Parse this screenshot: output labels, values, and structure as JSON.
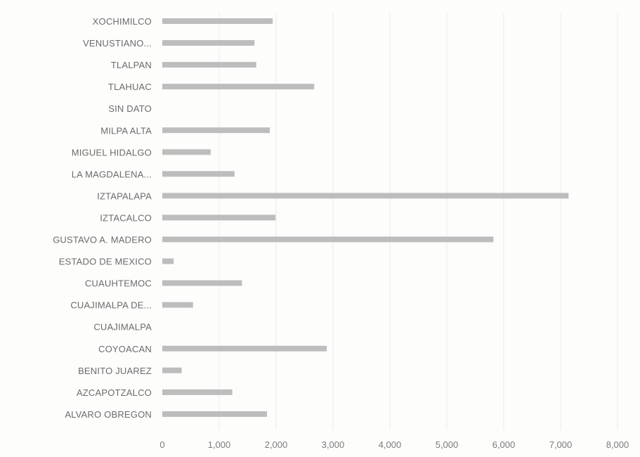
{
  "chart_data": {
    "type": "bar",
    "orientation": "horizontal",
    "categories": [
      "XOCHIMILCO",
      "VENUSTIANO...",
      "TLALPAN",
      "TLAHUAC",
      "SIN DATO",
      "MILPA ALTA",
      "MIGUEL HIDALGO",
      "LA MAGDALENA...",
      "IZTAPALAPA",
      "IZTACALCO",
      "GUSTAVO A. MADERO",
      "ESTADO DE MEXICO",
      "CUAUHTEMOC",
      "CUAJIMALPA DE...",
      "CUAJIMALPA",
      "COYOACAN",
      "BENITO JUAREZ",
      "AZCAPOTZALCO",
      "ALVARO OBREGON"
    ],
    "values": [
      1940,
      1620,
      1650,
      2670,
      0,
      1890,
      850,
      1270,
      7140,
      1990,
      5820,
      200,
      1400,
      540,
      0,
      2890,
      340,
      1230,
      1840
    ],
    "xticks": [
      0,
      1000,
      2000,
      3000,
      4000,
      5000,
      6000,
      7000,
      8000
    ],
    "xtick_labels": [
      "0",
      "1,000",
      "2,000",
      "3,000",
      "4,000",
      "5,000",
      "6,000",
      "7,000",
      "8,000"
    ],
    "xlim": [
      0,
      8000
    ],
    "title": "",
    "xlabel": "",
    "ylabel": "",
    "grid": true,
    "legend": "none",
    "bar_color": "#bdbdbd"
  }
}
